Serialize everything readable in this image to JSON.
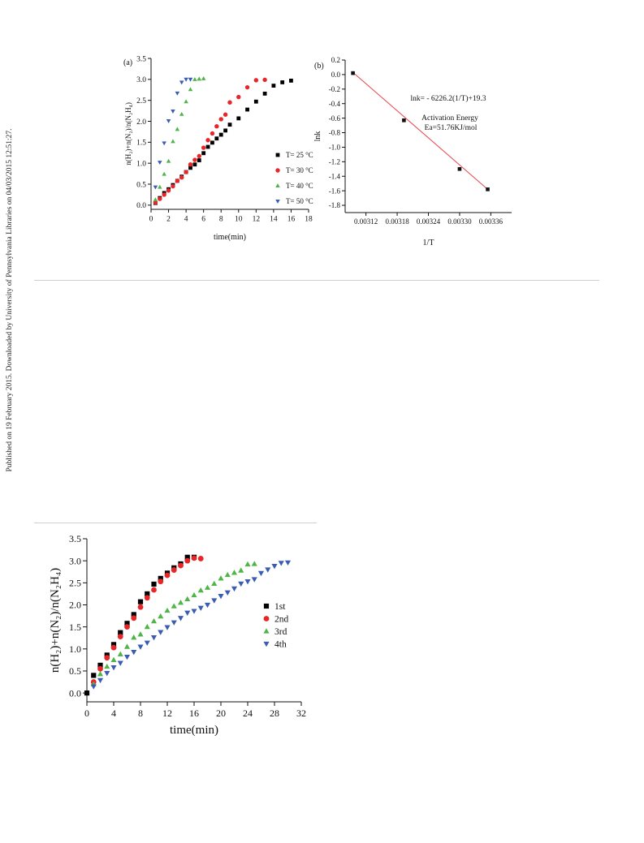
{
  "side_note": "Published on 19 February 2015. Downloaded by University of Pennsylvania Libraries on 04/03/2015 12:51:27.",
  "chart_data": [
    {
      "id": "a",
      "panel_label": "(a)",
      "type": "scatter",
      "xlabel": "time(min)",
      "ylabel": "n(H₂)+n(N₂)/n(N₂H₄)",
      "xlim": [
        0,
        18
      ],
      "ylim": [
        -0.1,
        3.5
      ],
      "xticks": [
        0,
        2,
        4,
        6,
        8,
        10,
        12,
        14,
        16,
        18
      ],
      "yticks": [
        0.0,
        0.5,
        1.0,
        1.5,
        2.0,
        2.5,
        3.0,
        3.5
      ],
      "grid": false,
      "legend_position": "right",
      "series": [
        {
          "name": "T= 25 °C",
          "marker": "square",
          "color": "#000000",
          "x": [
            0.5,
            1,
            1.5,
            2,
            2.5,
            3,
            3.5,
            4,
            4.5,
            5,
            5.5,
            6,
            6.5,
            7,
            7.5,
            8,
            8.5,
            9,
            10,
            11,
            12,
            13,
            14,
            15,
            16
          ],
          "y": [
            0.05,
            0.17,
            0.29,
            0.38,
            0.48,
            0.58,
            0.68,
            0.79,
            0.89,
            0.97,
            1.07,
            1.24,
            1.39,
            1.49,
            1.59,
            1.68,
            1.78,
            1.92,
            2.07,
            2.28,
            2.47,
            2.66,
            2.85,
            2.93,
            2.97
          ]
        },
        {
          "name": "T= 30 °C",
          "marker": "circle",
          "color": "#e8262a",
          "x": [
            0.5,
            1,
            1.5,
            2,
            2.5,
            3,
            3.5,
            4,
            4.5,
            5,
            5.5,
            6,
            6.5,
            7,
            7.5,
            8,
            8.5,
            9,
            10,
            11,
            12,
            13
          ],
          "y": [
            0.06,
            0.15,
            0.25,
            0.35,
            0.45,
            0.58,
            0.66,
            0.79,
            0.97,
            1.08,
            1.17,
            1.37,
            1.55,
            1.71,
            1.88,
            2.05,
            2.16,
            2.45,
            2.58,
            2.81,
            2.98,
            2.99
          ]
        },
        {
          "name": "T= 40 °C",
          "marker": "triangle-up",
          "color": "#4fb548",
          "x": [
            0.5,
            1,
            1.5,
            2,
            2.5,
            3,
            3.5,
            4,
            4.5,
            5,
            5.5,
            6
          ],
          "y": [
            0.13,
            0.43,
            0.74,
            1.05,
            1.52,
            1.81,
            2.17,
            2.47,
            2.76,
            3.0,
            3.01,
            3.02
          ]
        },
        {
          "name": "T= 50 °C",
          "marker": "triangle-down",
          "color": "#3a5db3",
          "x": [
            0.5,
            1,
            1.5,
            2,
            2.5,
            3,
            3.5,
            4,
            4.5
          ],
          "y": [
            0.43,
            1.02,
            1.48,
            2.01,
            2.24,
            2.67,
            2.93,
            3.0,
            3.0
          ]
        }
      ]
    },
    {
      "id": "b",
      "panel_label": "(b)",
      "type": "scatter",
      "xlabel": "1/T",
      "ylabel": "lnk",
      "xlim": [
        0.00308,
        0.0034
      ],
      "ylim": [
        -1.9,
        0.2
      ],
      "xticks": [
        0.00312,
        0.00318,
        0.00324,
        0.0033,
        0.00336
      ],
      "yticks": [
        0.2,
        0.0,
        -0.2,
        -0.4,
        -0.6,
        -0.8,
        -1.0,
        -1.2,
        -1.4,
        -1.6,
        -1.8
      ],
      "grid": false,
      "points": {
        "x": [
          0.003095,
          0.003193,
          0.0033,
          0.003354
        ],
        "y": [
          0.02,
          -0.63,
          -1.3,
          -1.58
        ],
        "color": "#111111"
      },
      "fit_line": {
        "x": [
          0.003095,
          0.003354
        ],
        "y": [
          0.03,
          -1.58
        ],
        "color": "#e8454a"
      },
      "annotations": [
        "lnk= - 6226.2(1/T)+19.3",
        "Activation Energy",
        "Ea=51.76KJ/mol"
      ]
    },
    {
      "id": "c",
      "panel_label": "",
      "type": "scatter",
      "xlabel": "time(min)",
      "ylabel": "n(H₂)+n(N₂)/n(N₂H₄)",
      "xlim": [
        0,
        32
      ],
      "ylim": [
        -0.2,
        3.5
      ],
      "xticks": [
        0,
        4,
        8,
        12,
        16,
        20,
        24,
        28,
        32
      ],
      "yticks": [
        0.0,
        0.5,
        1.0,
        1.5,
        2.0,
        2.5,
        3.0,
        3.5
      ],
      "grid": false,
      "legend_position": "right",
      "series": [
        {
          "name": "1st",
          "marker": "square",
          "color": "#000000",
          "x": [
            0,
            1,
            2,
            3,
            4,
            5,
            6,
            7,
            8,
            9,
            10,
            11,
            12,
            13,
            14,
            15,
            16
          ],
          "y": [
            0,
            0.4,
            0.63,
            0.86,
            1.1,
            1.37,
            1.58,
            1.78,
            2.07,
            2.25,
            2.47,
            2.6,
            2.72,
            2.84,
            2.93,
            3.08,
            3.08
          ]
        },
        {
          "name": "2nd",
          "marker": "circle",
          "color": "#e8262a",
          "x": [
            1,
            2,
            3,
            4,
            5,
            6,
            7,
            8,
            9,
            10,
            11,
            12,
            13,
            14,
            15,
            16,
            17
          ],
          "y": [
            0.25,
            0.55,
            0.8,
            1.03,
            1.28,
            1.5,
            1.7,
            1.95,
            2.16,
            2.34,
            2.53,
            2.67,
            2.79,
            2.89,
            3.0,
            3.06,
            3.05
          ]
        },
        {
          "name": "3rd",
          "marker": "triangle-up",
          "color": "#4fb548",
          "x": [
            1,
            2,
            3,
            4,
            5,
            6,
            7,
            8,
            9,
            10,
            11,
            12,
            13,
            14,
            15,
            16,
            17,
            18,
            19,
            20,
            21,
            22,
            23,
            24,
            25
          ],
          "y": [
            0.2,
            0.43,
            0.6,
            0.75,
            0.88,
            1.05,
            1.26,
            1.33,
            1.5,
            1.63,
            1.74,
            1.87,
            1.97,
            2.05,
            2.13,
            2.22,
            2.33,
            2.39,
            2.48,
            2.6,
            2.68,
            2.73,
            2.78,
            2.92,
            2.93
          ]
        },
        {
          "name": "4th",
          "marker": "triangle-down",
          "color": "#3a5db3",
          "x": [
            1,
            2,
            3,
            4,
            5,
            6,
            7,
            8,
            9,
            10,
            11,
            12,
            13,
            14,
            15,
            16,
            17,
            18,
            19,
            20,
            21,
            22,
            23,
            24,
            25,
            26,
            27,
            28,
            29,
            30
          ],
          "y": [
            0.15,
            0.29,
            0.45,
            0.58,
            0.68,
            0.82,
            0.93,
            1.05,
            1.14,
            1.26,
            1.38,
            1.49,
            1.6,
            1.7,
            1.82,
            1.86,
            1.93,
            2.0,
            2.1,
            2.2,
            2.28,
            2.37,
            2.48,
            2.53,
            2.58,
            2.72,
            2.8,
            2.88,
            2.95,
            2.96
          ]
        }
      ]
    }
  ]
}
